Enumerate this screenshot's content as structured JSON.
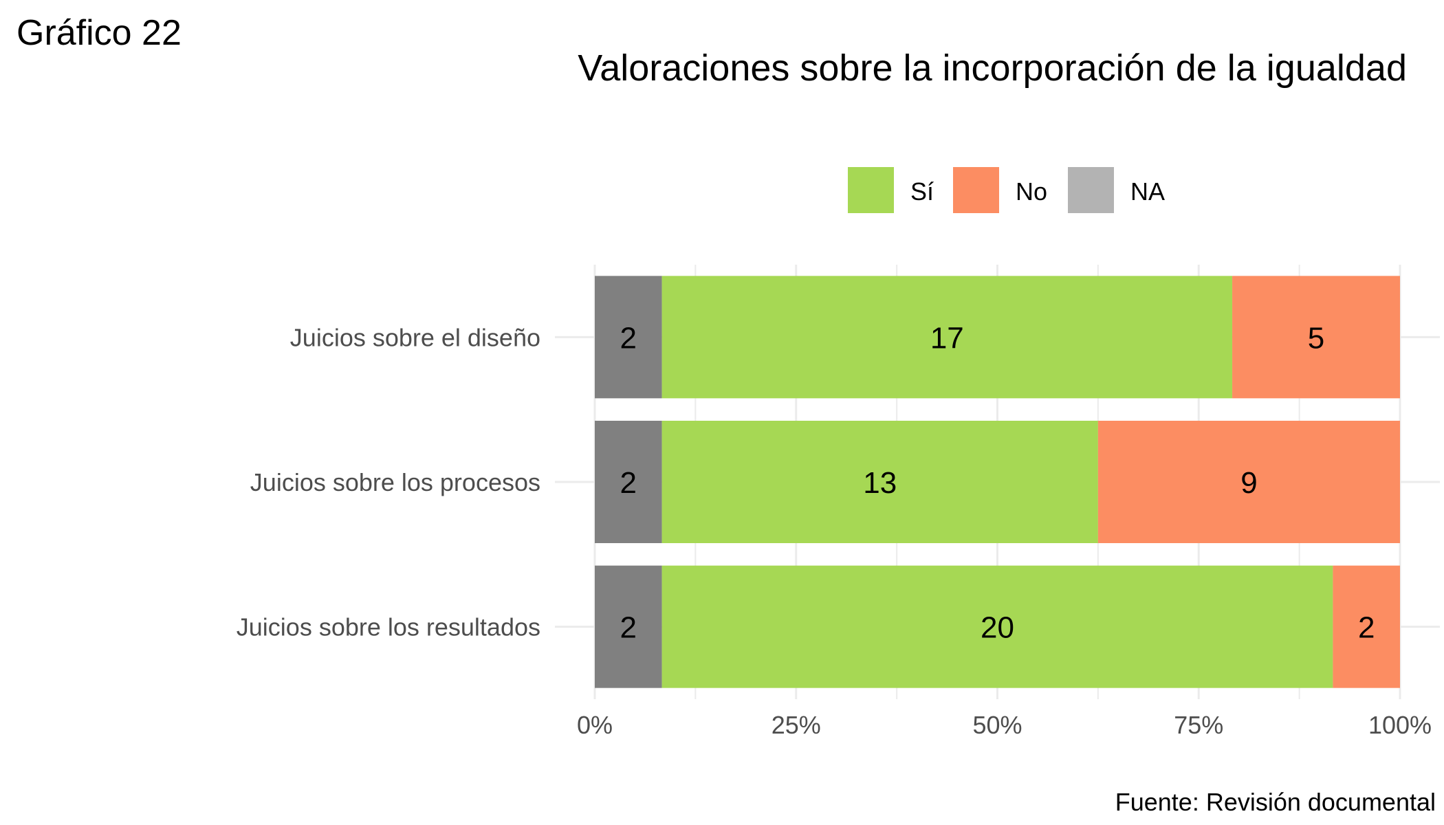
{
  "heading": "Gráfico 22",
  "source": "Fuente: Revisión documental",
  "colors": {
    "Sí": "#a6d854",
    "No": "#fc8d62",
    "NA": "#808080",
    "NA_legend": "#b3b3b3",
    "grid": "#ebebeb",
    "tick_text": "#4d4d4d"
  },
  "chart_data": {
    "type": "bar",
    "orientation": "horizontal",
    "stacked": "percent",
    "title": "Valoraciones sobre la incorporación de la igualdad",
    "xlabel": "",
    "ylabel": "",
    "categories": [
      "Juicios sobre el diseño",
      "Juicios sobre los procesos",
      "Juicios sobre los resultados"
    ],
    "series": [
      {
        "name": "NA",
        "values": [
          2,
          2,
          2
        ]
      },
      {
        "name": "Sí",
        "values": [
          17,
          13,
          20
        ]
      },
      {
        "name": "No",
        "values": [
          5,
          9,
          2
        ]
      }
    ],
    "legend_order": [
      "Sí",
      "No",
      "NA"
    ],
    "legend_position": "top",
    "x_ticks": [
      "0%",
      "25%",
      "50%",
      "75%",
      "100%"
    ],
    "xlim": [
      0,
      100
    ],
    "grid": true
  }
}
